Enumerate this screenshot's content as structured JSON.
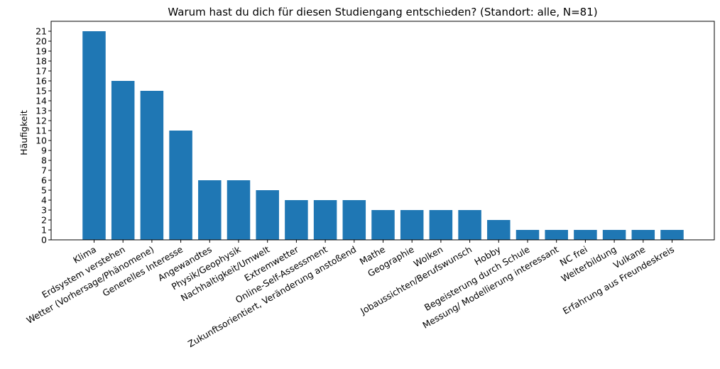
{
  "chart_data": {
    "type": "bar",
    "title": "Warum hast du dich für diesen Studiengang entschieden? (Standort: alle, N=81)",
    "xlabel": "",
    "ylabel": "Häufigkeit",
    "ylim": [
      0,
      22
    ],
    "yticks": [
      0,
      1,
      2,
      3,
      4,
      5,
      6,
      7,
      8,
      9,
      10,
      11,
      12,
      13,
      14,
      15,
      16,
      17,
      18,
      19,
      20,
      21
    ],
    "grid": false,
    "bar_color": "#1f77b4",
    "categories": [
      "Klima",
      "Erdsystem verstehen",
      "Wetter (Vorhersage/Phänomene)",
      "Generelles Interesse",
      "Angewandtes",
      "Physik/Geophysik",
      "Nachhaltigkeit/Umwelt",
      "Extremwetter",
      "Online-Self-Assessment",
      "Zukunftsorientiert, Veränderung anstoßend",
      "Mathe",
      "Geographie",
      "Wolken",
      "Jobaussichten/Berufswunsch",
      "Hobby",
      "Begeisterung durch Schule",
      "Messung/ Modellierung interessant",
      "NC frei",
      "Weiterbildung",
      "Vulkane",
      "Erfahrung aus Freundeskreis"
    ],
    "values": [
      21,
      16,
      15,
      11,
      6,
      6,
      5,
      4,
      4,
      4,
      3,
      3,
      3,
      3,
      2,
      1,
      1,
      1,
      1,
      1,
      1
    ]
  }
}
